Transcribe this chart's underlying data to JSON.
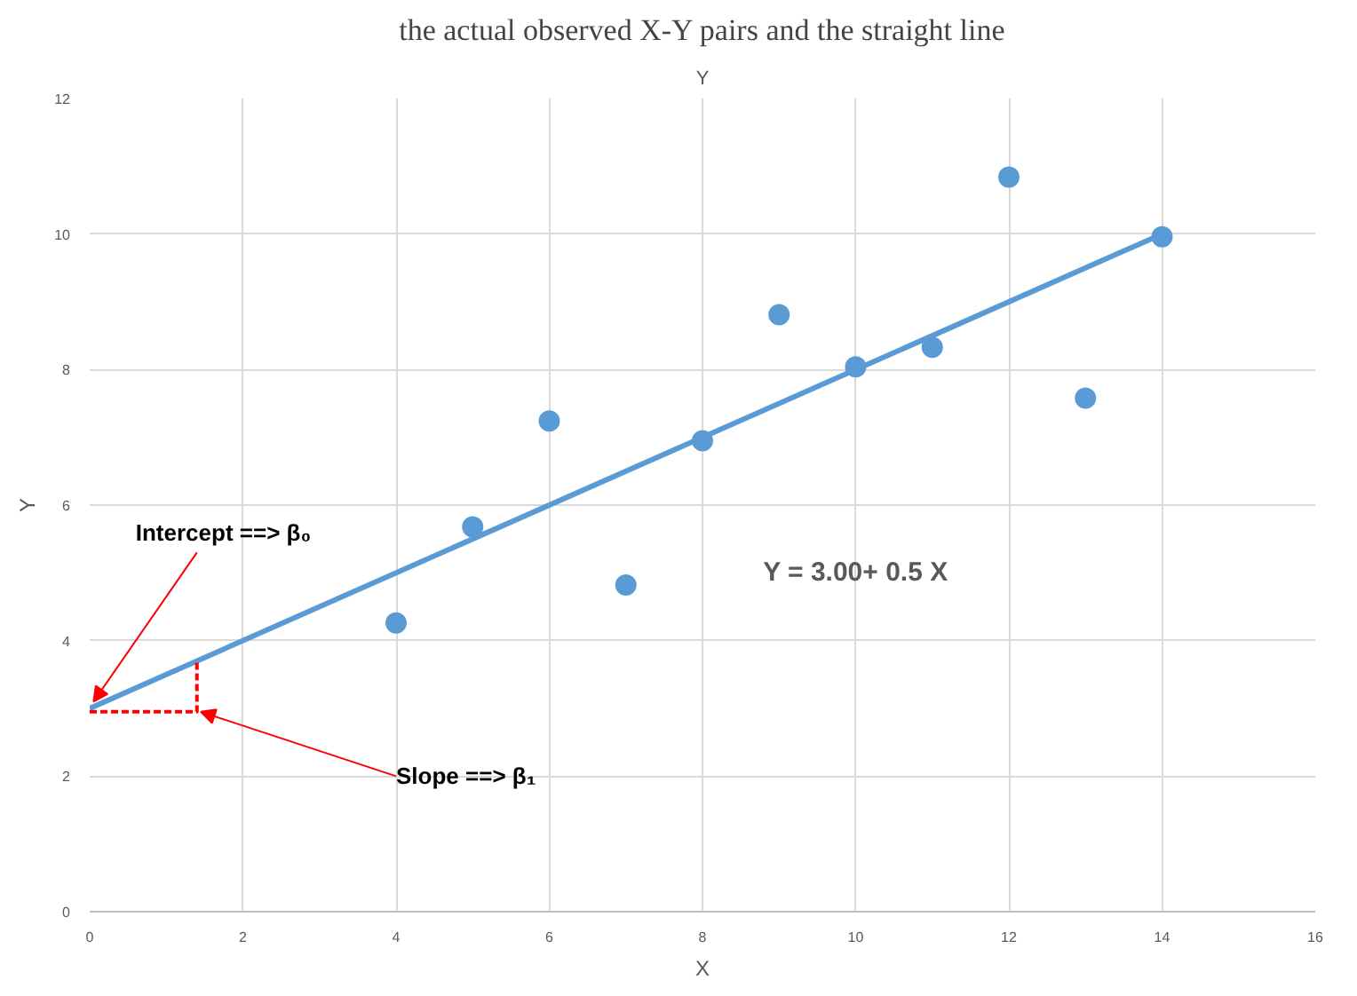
{
  "chart_data": {
    "type": "scatter",
    "title": "Y",
    "xlabel": "X",
    "ylabel": "Y",
    "annotations": [
      "the actual observed X-Y pairs and the straight line",
      {
        "text": "Intercept ==> β₀",
        "x": 0,
        "y": 3
      },
      {
        "text": "Slope ==> β₁",
        "x": 1.4,
        "y": 2.95
      },
      "Y = 3.00+ 0.5 X"
    ],
    "series": [
      {
        "color": "#5b9bd5",
        "marker": "circle",
        "x": [
          10,
          8,
          13,
          9,
          11,
          14,
          6,
          4,
          12,
          7,
          5
        ],
        "values": [
          8.04,
          6.95,
          7.58,
          8.81,
          8.33,
          9.96,
          7.24,
          4.26,
          10.84,
          4.82,
          5.68
        ]
      },
      {
        "type": "line",
        "color": "#5b9bd5",
        "line_style": "solid",
        "x": [
          0,
          14
        ],
        "values": [
          3,
          10
        ]
      },
      {
        "type": "line",
        "color": "#ff0000",
        "line_style": "dashed",
        "x": [
          0,
          1.4,
          1.4
        ],
        "values": [
          2.95,
          2.95,
          3.7
        ]
      }
    ],
    "xlim": [
      0,
      16
    ],
    "xticks": [
      0,
      2,
      4,
      6,
      8,
      10,
      12,
      14,
      16
    ],
    "ylim": [
      0,
      12
    ],
    "yticks": [
      0,
      2,
      4,
      6,
      8,
      10,
      12
    ],
    "grid": true
  }
}
